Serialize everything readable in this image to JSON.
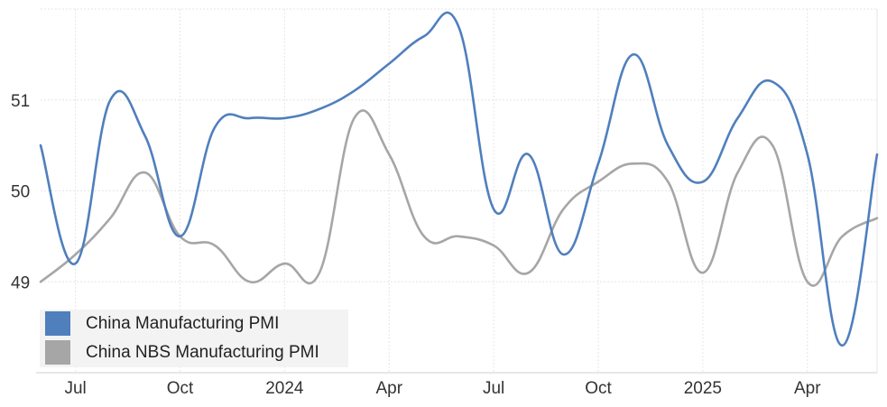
{
  "chart_data": {
    "type": "line",
    "x": [
      "2023-06",
      "2023-07",
      "2023-08",
      "2023-09",
      "2023-10",
      "2023-11",
      "2023-12",
      "2024-01",
      "2024-02",
      "2024-03",
      "2024-04",
      "2024-05",
      "2024-06",
      "2024-07",
      "2024-08",
      "2024-09",
      "2024-10",
      "2024-11",
      "2024-12",
      "2025-01",
      "2025-02",
      "2025-03",
      "2025-04",
      "2025-05",
      "2025-06"
    ],
    "series": [
      {
        "name": "China Manufacturing PMI",
        "color": "#4f7fbd",
        "values": [
          50.5,
          49.2,
          51.0,
          50.6,
          49.5,
          50.7,
          50.8,
          50.8,
          50.9,
          51.1,
          51.4,
          51.7,
          51.8,
          49.8,
          50.4,
          49.3,
          50.3,
          51.5,
          50.5,
          50.1,
          50.8,
          51.2,
          50.4,
          48.3,
          50.4
        ]
      },
      {
        "name": "China NBS Manufacturing PMI",
        "color": "#a6a6a6",
        "values": [
          49.0,
          49.3,
          49.7,
          50.2,
          49.5,
          49.4,
          49.0,
          49.2,
          49.1,
          50.8,
          50.4,
          49.5,
          49.5,
          49.4,
          49.1,
          49.8,
          50.1,
          50.3,
          50.1,
          49.1,
          50.2,
          50.5,
          49.0,
          49.5,
          49.7
        ]
      }
    ],
    "x_tick_labels": [
      {
        "label": "Jul",
        "at": "2023-07"
      },
      {
        "label": "Oct",
        "at": "2023-10"
      },
      {
        "label": "2024",
        "at": "2024-01"
      },
      {
        "label": "Apr",
        "at": "2024-04"
      },
      {
        "label": "Jul",
        "at": "2024-07"
      },
      {
        "label": "Oct",
        "at": "2024-10"
      },
      {
        "label": "2025",
        "at": "2025-01"
      },
      {
        "label": "Apr",
        "at": "2025-04"
      }
    ],
    "y_ticks": [
      49,
      50,
      51
    ],
    "ylim": [
      48.0,
      52.0
    ],
    "title": "",
    "xlabel": "",
    "ylabel": "",
    "grid": true,
    "legend_position": "bottom-left"
  }
}
